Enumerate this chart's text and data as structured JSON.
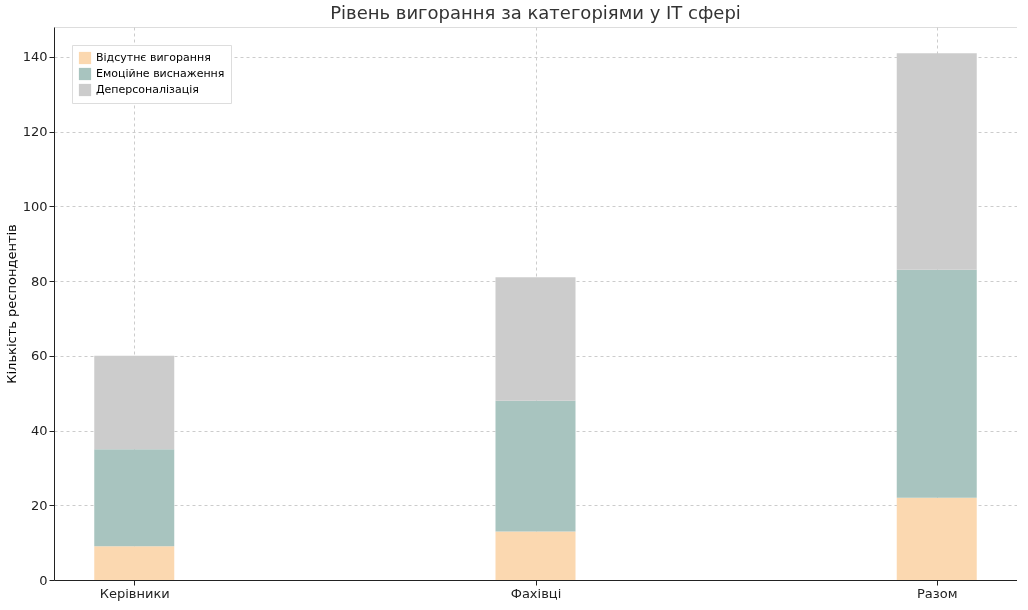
{
  "chart_data": {
    "type": "bar",
    "title": "Рівень вигорання за категоріями у IT сфері",
    "ylabel": "Кількість респондентів",
    "categories": [
      "Керівники",
      "Фахівці",
      "Разом"
    ],
    "stacked": true,
    "series": [
      {
        "name": "Відсутнє вигорання",
        "color": "#fbd8b0",
        "values": [
          9,
          13,
          22
        ]
      },
      {
        "name": "Емоційне виснаження",
        "color": "#a8c4bf",
        "values": [
          26,
          35,
          61
        ]
      },
      {
        "name": "Деперсоналізація",
        "color": "#cccccc",
        "values": [
          25,
          33,
          58
        ]
      }
    ],
    "ylim": [
      0,
      148
    ],
    "yticks": [
      0,
      20,
      40,
      60,
      80,
      100,
      120,
      140
    ],
    "grid": true,
    "legend": "top left"
  }
}
